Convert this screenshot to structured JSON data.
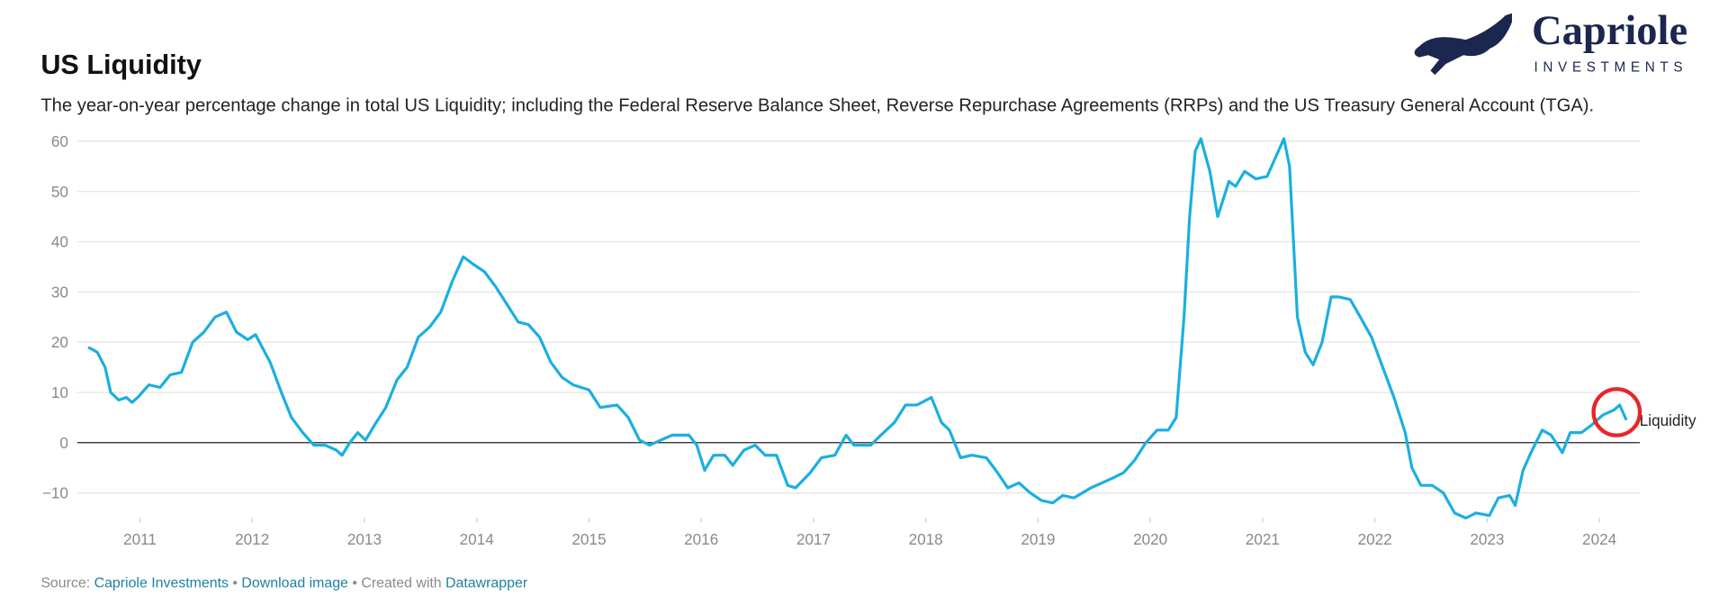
{
  "header": {
    "title": "US Liquidity",
    "subtitle": "The year-on-year percentage change in total US Liquidity; including the Federal Reserve Balance Sheet, Reverse Repurchase Agreements (RRPs) and the US Treasury General Account (TGA)."
  },
  "logo": {
    "name": "Capriole",
    "tagline": "INVESTMENTS"
  },
  "footer": {
    "source_label": "Source:",
    "source": "Capriole Investments",
    "separator": "•",
    "download": "Download image",
    "created": "Created with",
    "tool": "Datawrapper"
  },
  "chart_data": {
    "type": "line",
    "x": [
      2010.54,
      2010.62,
      2010.69,
      2010.74,
      2010.81,
      2010.88,
      2010.93,
      2010.98,
      2011.08,
      2011.18,
      2011.27,
      2011.37,
      2011.47,
      2011.57,
      2011.67,
      2011.77,
      2011.86,
      2011.96,
      2012.03,
      2012.16,
      2012.26,
      2012.35,
      2012.45,
      2012.55,
      2012.65,
      2012.75,
      2012.8,
      2012.87,
      2012.94,
      2013.01,
      2013.09,
      2013.19,
      2013.29,
      2013.38,
      2013.48,
      2013.58,
      2013.68,
      2013.78,
      2013.88,
      2013.97,
      2014.07,
      2014.17,
      2014.27,
      2014.37,
      2014.46,
      2014.56,
      2014.66,
      2014.76,
      2014.86,
      2015.0,
      2015.1,
      2015.25,
      2015.35,
      2015.45,
      2015.54,
      2015.64,
      2015.74,
      2015.89,
      2015.96,
      2016.03,
      2016.11,
      2016.21,
      2016.28,
      2016.38,
      2016.48,
      2016.57,
      2016.67,
      2016.77,
      2016.84,
      2016.97,
      2017.07,
      2017.19,
      2017.29,
      2017.36,
      2017.51,
      2017.6,
      2017.72,
      2017.82,
      2017.92,
      2018.05,
      2018.14,
      2018.21,
      2018.31,
      2018.41,
      2018.54,
      2018.64,
      2018.73,
      2018.83,
      2018.93,
      2019.03,
      2019.13,
      2019.22,
      2019.32,
      2019.47,
      2019.57,
      2019.67,
      2019.76,
      2019.86,
      2019.96,
      2020.06,
      2020.16,
      2020.23,
      2020.3,
      2020.35,
      2020.4,
      2020.45,
      2020.53,
      2020.6,
      2020.7,
      2020.76,
      2020.84,
      2020.94,
      2021.04,
      2021.12,
      2021.19,
      2021.24,
      2021.31,
      2021.38,
      2021.45,
      2021.53,
      2021.61,
      2021.68,
      2021.78,
      2021.87,
      2021.97,
      2022.07,
      2022.17,
      2022.27,
      2022.33,
      2022.41,
      2022.51,
      2022.61,
      2022.71,
      2022.81,
      2022.9,
      2023.02,
      2023.1,
      2023.2,
      2023.25,
      2023.32,
      2023.39,
      2023.49,
      2023.57,
      2023.67,
      2023.74,
      2023.84,
      2023.93,
      2024.03,
      2024.13,
      2024.18,
      2024.24
    ],
    "series": [
      {
        "name": "Liquidity",
        "color": "#1aafe0",
        "values": [
          19,
          18,
          15,
          10,
          8.5,
          9,
          8,
          9,
          11.5,
          11,
          13.5,
          14,
          20,
          22,
          25,
          26,
          22,
          20.5,
          21.5,
          16,
          10,
          5,
          2,
          -0.5,
          -0.5,
          -1.5,
          -2.5,
          0,
          2,
          0.5,
          3.5,
          7,
          12.5,
          15,
          21,
          23,
          26,
          32,
          37,
          35.5,
          34,
          31,
          27.5,
          24,
          23.5,
          21,
          16,
          13,
          11.5,
          10.5,
          7,
          7.5,
          5,
          0.5,
          -0.5,
          0.5,
          1.5,
          1.5,
          -0.5,
          -5.5,
          -2.5,
          -2.5,
          -4.5,
          -1.5,
          -0.5,
          -2.5,
          -2.5,
          -8.5,
          -9,
          -6,
          -3,
          -2.5,
          1.5,
          -0.5,
          -0.5,
          1.5,
          4,
          7.5,
          7.5,
          9,
          4,
          2.5,
          -3,
          -2.5,
          -3,
          -6,
          -9,
          -8,
          -10,
          -11.5,
          -12,
          -10.5,
          -11,
          -9,
          -8,
          -7,
          -6,
          -3.5,
          0,
          2.5,
          2.5,
          5,
          25,
          45,
          58,
          60.5,
          54,
          45,
          52,
          51,
          54,
          52.5,
          53,
          57,
          60.5,
          55,
          25,
          18,
          15.5,
          20,
          29,
          29,
          28.5,
          25,
          21,
          15,
          9,
          2,
          -5,
          -8.5,
          -8.5,
          -10,
          -14,
          -15,
          -14,
          -14.5,
          -11,
          -10.5,
          -12.5,
          -5.5,
          -2,
          2.5,
          1.5,
          -2,
          2,
          2,
          3.5,
          5.5,
          6.5,
          7.5,
          4.5
        ]
      }
    ],
    "xlim": [
      2010.5,
      2024.35
    ],
    "xticks": [
      2011,
      2012,
      2013,
      2014,
      2015,
      2016,
      2017,
      2018,
      2019,
      2020,
      2021,
      2022,
      2023,
      2024
    ],
    "ylim": [
      -15,
      62
    ],
    "yticks": [
      60,
      50,
      40,
      30,
      20,
      10,
      0,
      {
        "value": -10,
        "label": "−10"
      }
    ],
    "grid": true
  }
}
